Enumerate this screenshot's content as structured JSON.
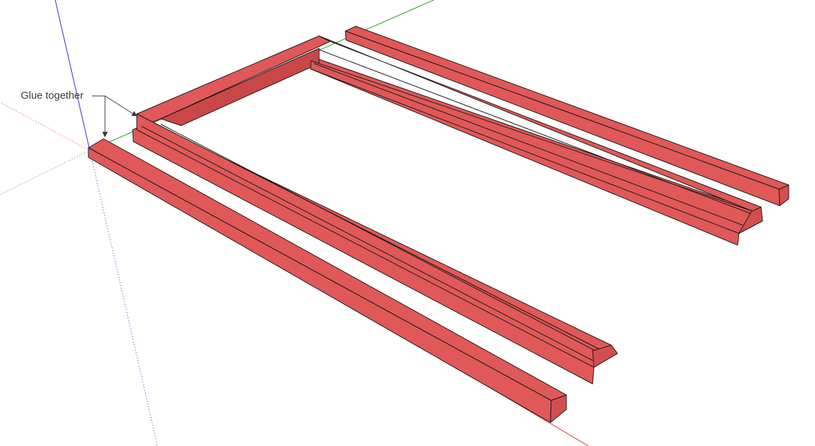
{
  "scene": {
    "annotation": "Glue together",
    "colors": {
      "background": "#ffffff",
      "material_face": "#e05858",
      "material_face_dark": "#c94747",
      "edge": "#1a1a1a",
      "axis_red": "#d83030",
      "axis_green": "#2a9a2a",
      "axis_blue": "#2a2ad0"
    },
    "parts": [
      "loose-rail-front",
      "glued-frame",
      "loose-rail-back"
    ]
  }
}
